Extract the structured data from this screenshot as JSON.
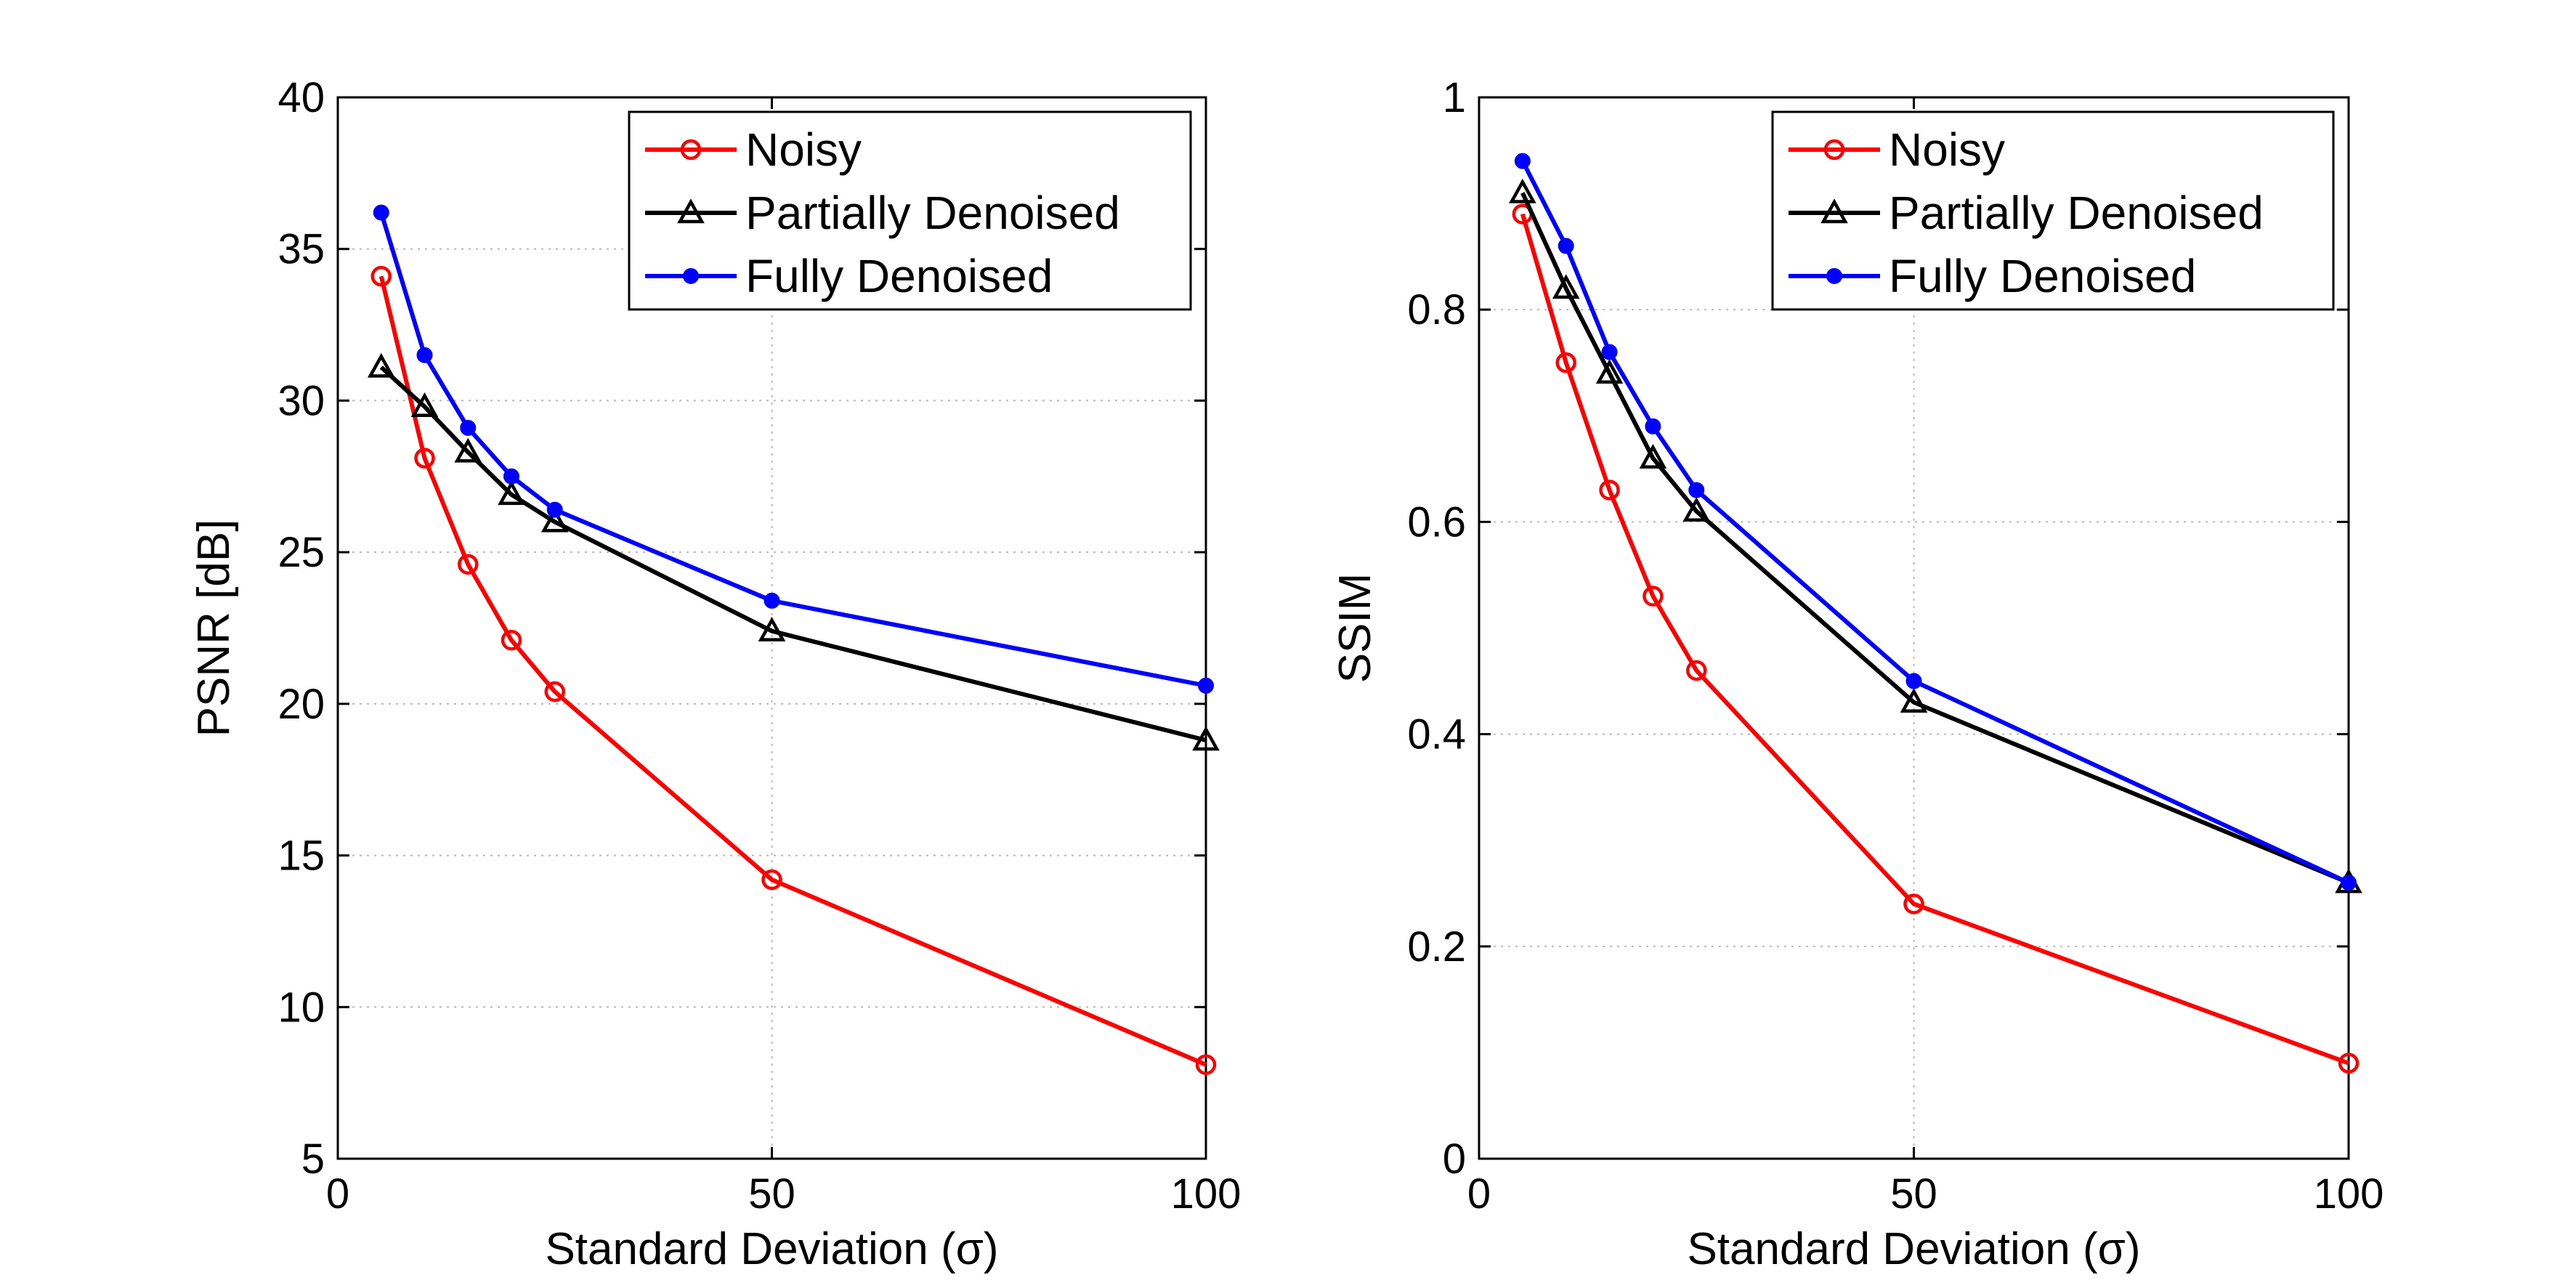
{
  "chart_data": [
    {
      "type": "line",
      "xlabel": "Standard Deviation (σ)",
      "ylabel": "PSNR [dB]",
      "xlim": [
        0,
        100
      ],
      "ylim": [
        5,
        40
      ],
      "xticks": [
        "0",
        "50",
        "100"
      ],
      "yticks": [
        "5",
        "10",
        "15",
        "20",
        "25",
        "30",
        "35",
        "40"
      ],
      "grid": true,
      "legend_position": "top-right",
      "x": [
        5,
        10,
        15,
        20,
        25,
        50,
        100
      ],
      "series": [
        {
          "name": "Noisy",
          "color": "#ff0000",
          "marker": "circle",
          "values": [
            34.1,
            28.1,
            24.6,
            22.1,
            20.4,
            14.2,
            8.1
          ]
        },
        {
          "name": "Partially Denoised",
          "color": "#000000",
          "marker": "triangle",
          "values": [
            31.1,
            29.8,
            28.3,
            26.9,
            26.0,
            22.4,
            18.8
          ]
        },
        {
          "name": "Fully Denoised",
          "color": "#0000ff",
          "marker": "dot",
          "values": [
            36.2,
            31.5,
            29.1,
            27.5,
            26.4,
            23.4,
            20.6
          ]
        }
      ]
    },
    {
      "type": "line",
      "xlabel": "Standard Deviation (σ)",
      "ylabel": "SSIM",
      "xlim": [
        0,
        100
      ],
      "ylim": [
        0,
        1
      ],
      "xticks": [
        "0",
        "50",
        "100"
      ],
      "yticks": [
        "0",
        "0.2",
        "0.4",
        "0.6",
        "0.8",
        "1"
      ],
      "grid": true,
      "legend_position": "top-right",
      "x": [
        5,
        10,
        15,
        20,
        25,
        50,
        100
      ],
      "series": [
        {
          "name": "Noisy",
          "color": "#ff0000",
          "marker": "circle",
          "values": [
            0.89,
            0.75,
            0.63,
            0.53,
            0.46,
            0.24,
            0.09
          ]
        },
        {
          "name": "Partially Denoised",
          "color": "#000000",
          "marker": "triangle",
          "values": [
            0.91,
            0.82,
            0.74,
            0.66,
            0.61,
            0.43,
            0.26
          ]
        },
        {
          "name": "Fully Denoised",
          "color": "#0000ff",
          "marker": "dot",
          "values": [
            0.94,
            0.86,
            0.76,
            0.69,
            0.63,
            0.45,
            0.26
          ]
        }
      ]
    }
  ]
}
